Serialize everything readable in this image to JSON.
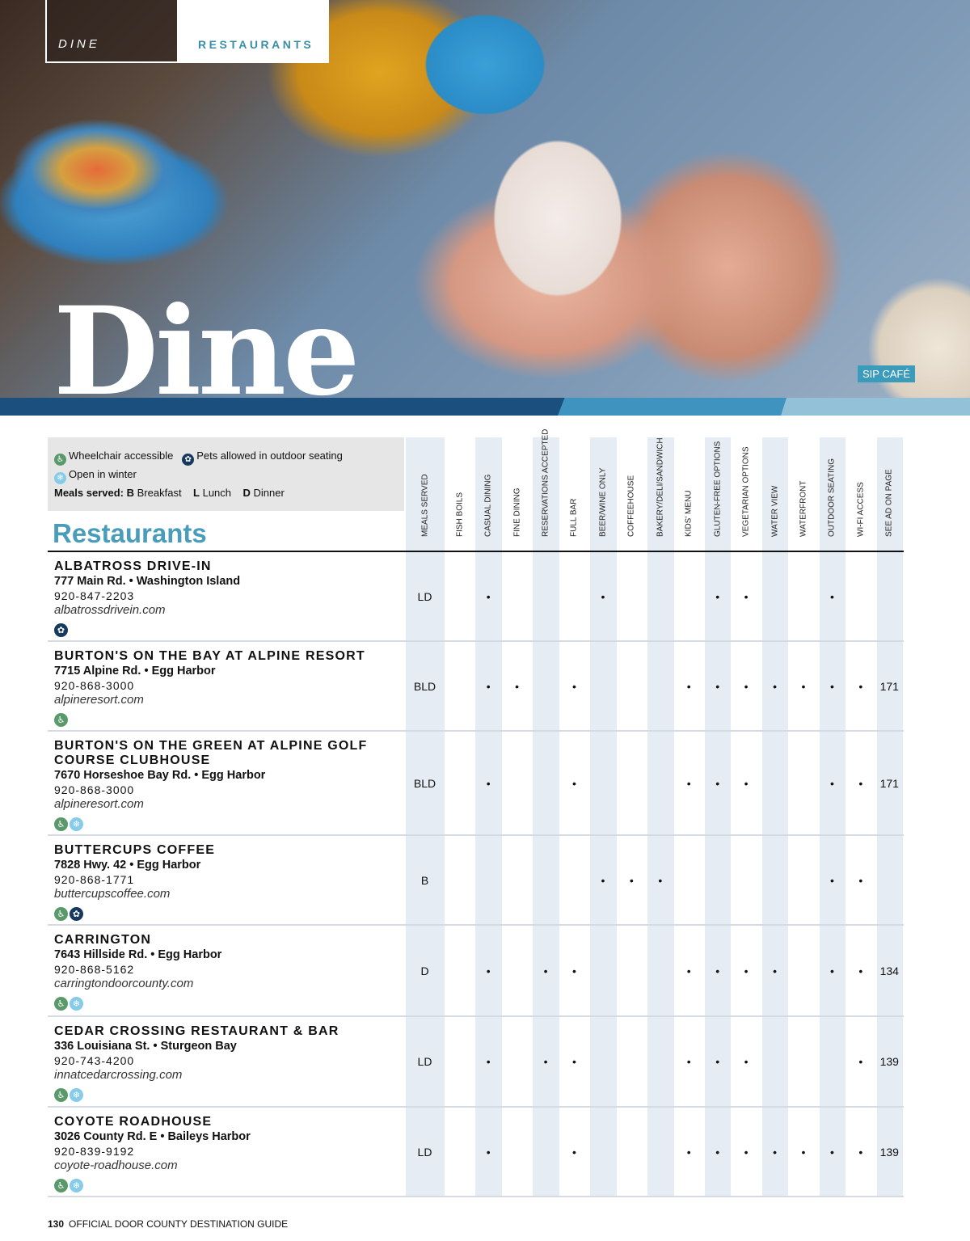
{
  "header": {
    "section": "DINE",
    "category": "RESTAURANTS",
    "title": "Dine",
    "photo_credit": "SIP CAFÉ"
  },
  "legend": {
    "wheelchair": "Wheelchair accessible",
    "pets": "Pets allowed in outdoor seating",
    "winter": "Open in winter",
    "meals_label": "Meals served:",
    "meals": [
      {
        "code": "B",
        "label": "Breakfast"
      },
      {
        "code": "L",
        "label": "Lunch"
      },
      {
        "code": "D",
        "label": "Dinner"
      }
    ]
  },
  "section_title": "Restaurants",
  "columns": [
    "MEALS SERVED",
    "FISH BOILS",
    "CASUAL DINING",
    "FINE DINING",
    "RESERVATIONS ACCEPTED",
    "FULL BAR",
    "BEER/WINE ONLY",
    "COFFEEHOUSE",
    "BAKERY/DELI/SANDWICH",
    "KIDS' MENU",
    "GLUTEN-FREE OPTIONS",
    "VEGETARIAN OPTIONS",
    "WATER VIEW",
    "WATERFRONT",
    "OUTDOOR SEATING",
    "WI-FI ACCESS",
    "SEE AD ON PAGE"
  ],
  "colors": {
    "accent": "#4a9dba",
    "stripe": "#e6ecf3",
    "wheelchair": "#5a9a6a",
    "pets": "#163a5e",
    "winter": "#86cbe8"
  },
  "restaurants": [
    {
      "name": "ALBATROSS DRIVE-IN",
      "address": "777 Main Rd. • Washington Island",
      "phone": "920-847-2203",
      "website": "albatrossdrivein.com",
      "icons": [
        "paw-icon"
      ],
      "meals": "LD",
      "features": [
        false,
        true,
        false,
        false,
        false,
        true,
        false,
        false,
        false,
        true,
        true,
        false,
        false,
        true,
        false
      ],
      "ad_page": ""
    },
    {
      "name": "BURTON'S ON THE BAY AT ALPINE RESORT",
      "address": "7715 Alpine Rd. • Egg Harbor",
      "phone": "920-868-3000",
      "website": "alpineresort.com",
      "icons": [
        "wheelchair-icon"
      ],
      "meals": "BLD",
      "features": [
        false,
        true,
        true,
        false,
        true,
        false,
        false,
        false,
        true,
        true,
        true,
        true,
        true,
        true,
        true
      ],
      "ad_page": "171"
    },
    {
      "name": "BURTON'S ON THE GREEN AT ALPINE GOLF COURSE CLUBHOUSE",
      "address": "7670 Horseshoe Bay Rd. • Egg Harbor",
      "phone": "920-868-3000",
      "website": "alpineresort.com",
      "icons": [
        "wheelchair-icon",
        "snowflake-icon"
      ],
      "meals": "BLD",
      "features": [
        false,
        true,
        false,
        false,
        true,
        false,
        false,
        false,
        true,
        true,
        true,
        false,
        false,
        true,
        true
      ],
      "ad_page": "171"
    },
    {
      "name": "BUTTERCUPS COFFEE",
      "address": "7828 Hwy. 42 • Egg Harbor",
      "phone": "920-868-1771",
      "website": "buttercupscoffee.com",
      "icons": [
        "wheelchair-icon",
        "paw-icon"
      ],
      "meals": "B",
      "features": [
        false,
        false,
        false,
        false,
        false,
        true,
        true,
        true,
        false,
        false,
        false,
        false,
        false,
        true,
        true
      ],
      "ad_page": ""
    },
    {
      "name": "CARRINGTON",
      "address": "7643 Hillside Rd. • Egg Harbor",
      "phone": "920-868-5162",
      "website": "carringtondoorcounty.com",
      "icons": [
        "wheelchair-icon",
        "snowflake-icon"
      ],
      "meals": "D",
      "features": [
        false,
        true,
        false,
        true,
        true,
        false,
        false,
        false,
        true,
        true,
        true,
        true,
        false,
        true,
        true
      ],
      "ad_page": "134"
    },
    {
      "name": "CEDAR CROSSING RESTAURANT & BAR",
      "address": "336 Louisiana St. • Sturgeon Bay",
      "phone": "920-743-4200",
      "website": "innatcedarcrossing.com",
      "icons": [
        "wheelchair-icon",
        "snowflake-icon"
      ],
      "meals": "LD",
      "features": [
        false,
        true,
        false,
        true,
        true,
        false,
        false,
        false,
        true,
        true,
        true,
        false,
        false,
        false,
        true
      ],
      "ad_page": "139"
    },
    {
      "name": "COYOTE ROADHOUSE",
      "address": "3026 County Rd. E • Baileys Harbor",
      "phone": "920-839-9192",
      "website": "coyote-roadhouse.com",
      "icons": [
        "wheelchair-icon",
        "snowflake-icon"
      ],
      "meals": "LD",
      "features": [
        false,
        true,
        false,
        false,
        true,
        false,
        false,
        false,
        true,
        true,
        true,
        true,
        true,
        true,
        true
      ],
      "ad_page": "139"
    }
  ],
  "footer": {
    "page_number": "130",
    "publication": "OFFICIAL DOOR COUNTY DESTINATION GUIDE"
  }
}
